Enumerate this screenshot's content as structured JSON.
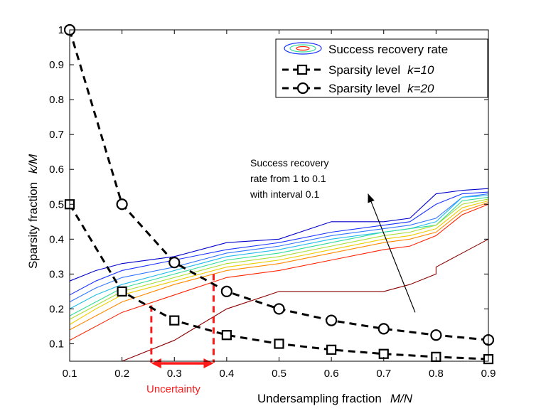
{
  "chart_data": {
    "type": "line",
    "xlabel": "Undersampling fraction",
    "xlabel_var": "M/N",
    "ylabel": "Sparsity fraction",
    "ylabel_var": "k/M",
    "xlim": [
      0.1,
      0.9
    ],
    "ylim": [
      0.05,
      1.0
    ],
    "xticks": [
      0.1,
      0.2,
      0.3,
      0.4,
      0.5,
      0.6,
      0.7,
      0.8,
      0.9
    ],
    "yticks": [
      0.1,
      0.2,
      0.3,
      0.4,
      0.5,
      0.6,
      0.7,
      0.8,
      0.9,
      1
    ],
    "legend": {
      "position": "top-right",
      "entries": [
        {
          "label": "Success recovery rate",
          "var": ""
        },
        {
          "label": "Sparsity level",
          "var": "k=10"
        },
        {
          "label": "Sparsity level",
          "var": "k=20"
        }
      ]
    },
    "series": [
      {
        "name": "Sparsity level k=10",
        "marker": "square",
        "x": [
          0.1,
          0.2,
          0.3,
          0.4,
          0.5,
          0.6,
          0.7,
          0.8,
          0.9
        ],
        "y": [
          0.5,
          0.25,
          0.167,
          0.125,
          0.1,
          0.083,
          0.071,
          0.0625,
          0.056
        ]
      },
      {
        "name": "Sparsity level k=20",
        "marker": "circle",
        "x": [
          0.1,
          0.2,
          0.3,
          0.4,
          0.5,
          0.6,
          0.7,
          0.8,
          0.9
        ],
        "y": [
          1.0,
          0.5,
          0.333,
          0.25,
          0.2,
          0.167,
          0.143,
          0.125,
          0.111
        ]
      }
    ],
    "contours": {
      "levels_label": "Success recovery rate from 1 to 0.1 with interval 0.1",
      "x": [
        0.1,
        0.15,
        0.2,
        0.3,
        0.4,
        0.5,
        0.6,
        0.7,
        0.75,
        0.8,
        0.85,
        0.9
      ],
      "lines": [
        {
          "level": 0.1,
          "color": "#0000cc",
          "y": [
            0.28,
            0.31,
            0.33,
            0.35,
            0.39,
            0.4,
            0.45,
            0.45,
            0.46,
            0.53,
            0.54,
            0.545
          ]
        },
        {
          "level": 0.2,
          "color": "#1a33ff",
          "y": [
            0.24,
            0.28,
            0.31,
            0.34,
            0.37,
            0.39,
            0.42,
            0.44,
            0.45,
            0.5,
            0.53,
            0.535
          ]
        },
        {
          "level": 0.3,
          "color": "#3377ff",
          "y": [
            0.22,
            0.26,
            0.29,
            0.32,
            0.36,
            0.38,
            0.41,
            0.43,
            0.44,
            0.46,
            0.52,
            0.53
          ]
        },
        {
          "level": 0.4,
          "color": "#22bbee",
          "y": [
            0.2,
            0.24,
            0.27,
            0.31,
            0.35,
            0.37,
            0.4,
            0.42,
            0.43,
            0.45,
            0.52,
            0.525
          ]
        },
        {
          "level": 0.5,
          "color": "#33dd99",
          "y": [
            0.18,
            0.22,
            0.26,
            0.3,
            0.34,
            0.36,
            0.39,
            0.42,
            0.43,
            0.44,
            0.51,
            0.52
          ]
        },
        {
          "level": 0.6,
          "color": "#aadd33",
          "y": [
            0.17,
            0.21,
            0.25,
            0.29,
            0.33,
            0.35,
            0.38,
            0.41,
            0.42,
            0.44,
            0.5,
            0.515
          ]
        },
        {
          "level": 0.7,
          "color": "#eecc00",
          "y": [
            0.155,
            0.2,
            0.24,
            0.28,
            0.32,
            0.34,
            0.37,
            0.4,
            0.41,
            0.43,
            0.49,
            0.51
          ]
        },
        {
          "level": 0.8,
          "color": "#ff8800",
          "y": [
            0.14,
            0.18,
            0.22,
            0.27,
            0.31,
            0.33,
            0.36,
            0.39,
            0.4,
            0.42,
            0.48,
            0.505
          ]
        },
        {
          "level": 0.9,
          "color": "#ff2200",
          "y": [
            0.11,
            0.15,
            0.19,
            0.24,
            0.29,
            0.31,
            0.34,
            0.37,
            0.38,
            0.41,
            0.47,
            0.5
          ]
        }
      ],
      "outer": {
        "level": 1.0,
        "color": "#8b0000",
        "x": [
          0.2,
          0.3,
          0.4,
          0.5,
          0.6,
          0.7,
          0.75,
          0.8,
          0.8,
          0.85,
          0.9
        ],
        "y": [
          0.05,
          0.11,
          0.2,
          0.25,
          0.25,
          0.25,
          0.27,
          0.3,
          0.32,
          0.36,
          0.4
        ]
      }
    },
    "annotation": {
      "lines": [
        "Success recovery",
        "rate from 1 to 0.1",
        "with interval 0.1"
      ],
      "arrow_from": [
        0.76,
        0.19
      ],
      "arrow_to": [
        0.67,
        0.53
      ]
    },
    "uncertainty": {
      "label": "Uncertainty",
      "x_range": [
        0.256,
        0.375
      ],
      "y_tops": [
        0.21,
        0.3
      ],
      "color": "#ff1a1a"
    }
  }
}
